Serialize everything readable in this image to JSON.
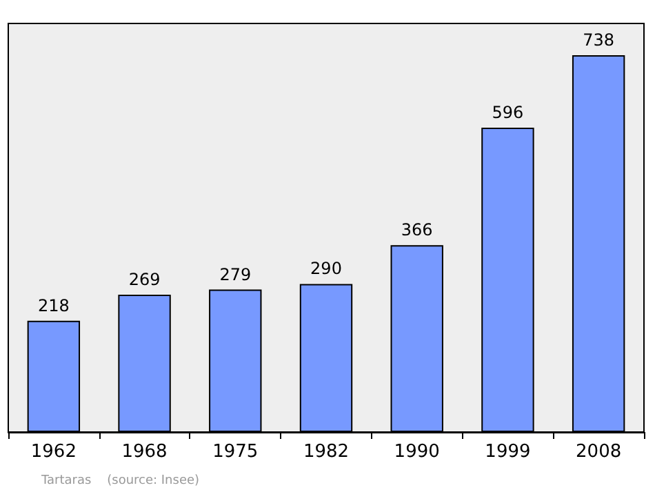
{
  "chart_data": {
    "type": "bar",
    "categories": [
      "1962",
      "1968",
      "1975",
      "1982",
      "1990",
      "1999",
      "2008"
    ],
    "values": [
      218,
      269,
      279,
      290,
      366,
      596,
      738
    ],
    "color": "#7799ff",
    "data_labels": true,
    "grid": false,
    "annotations": [
      "Tartaras    (source: Insee)"
    ]
  }
}
